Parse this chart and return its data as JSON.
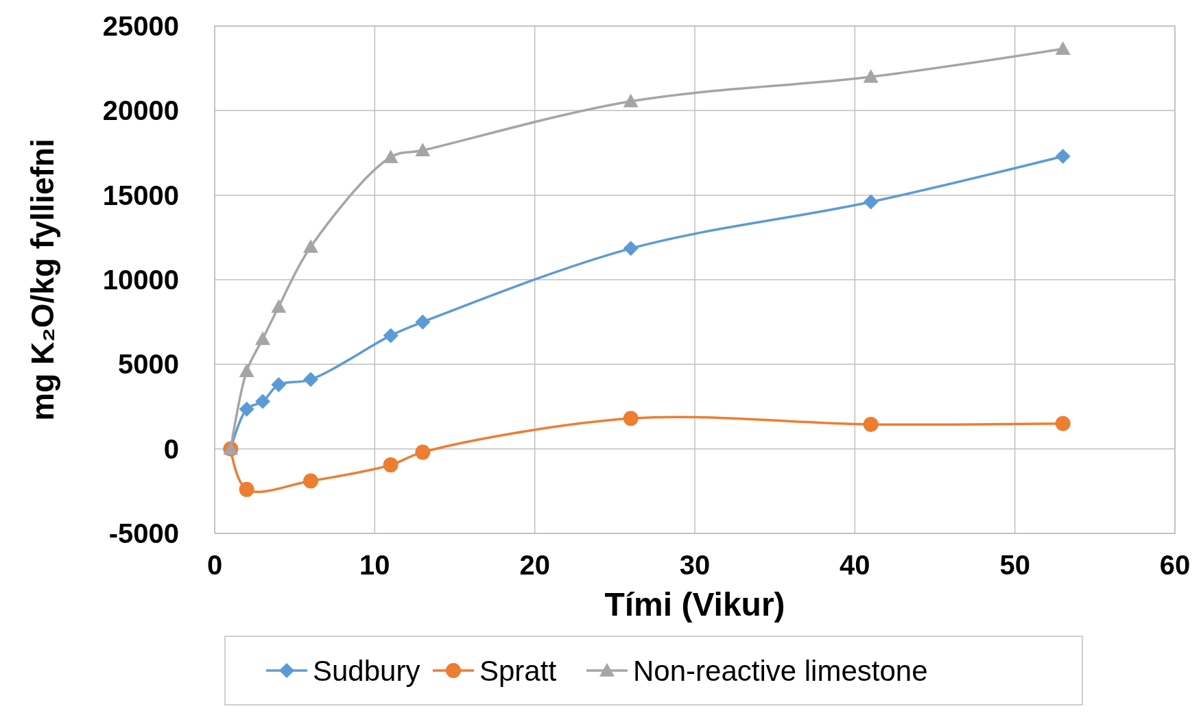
{
  "chart_data": {
    "type": "line",
    "xlabel": "Tími (Vikur)",
    "ylabel": "mg K₂O/kg fylliefni",
    "xlim": [
      0,
      60
    ],
    "xticks": [
      0,
      10,
      20,
      30,
      40,
      50,
      60
    ],
    "ylim": [
      -5000,
      25000
    ],
    "yticks": [
      -5000,
      0,
      5000,
      10000,
      15000,
      20000,
      25000
    ],
    "grid": true,
    "legend": "bottom",
    "line_style": "solid",
    "series": [
      {
        "name": "Sudbury",
        "color": "#5b9bd5",
        "marker": "diamond",
        "x": [
          1,
          2,
          3,
          4,
          6,
          11,
          13,
          26,
          41,
          53
        ],
        "values": [
          0,
          2350,
          2800,
          3800,
          4100,
          6700,
          7500,
          11850,
          14600,
          17300
        ]
      },
      {
        "name": "Spratt",
        "color": "#ed7d31",
        "marker": "circle",
        "x": [
          1,
          2,
          6,
          11,
          13,
          26,
          41,
          53
        ],
        "values": [
          0,
          -2400,
          -1900,
          -950,
          -200,
          1800,
          1450,
          1500
        ]
      },
      {
        "name": "Non-reactive limestone",
        "color": "#a5a5a5",
        "marker": "triangle",
        "x": [
          1,
          2,
          3,
          4,
          6,
          11,
          13,
          26,
          41,
          53
        ],
        "values": [
          0,
          4600,
          6500,
          8400,
          11950,
          17250,
          17650,
          20550,
          22000,
          23650
        ]
      }
    ]
  }
}
